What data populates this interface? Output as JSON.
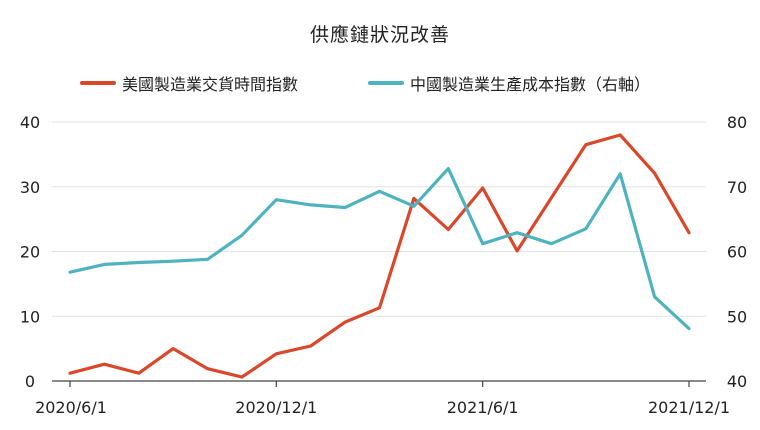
{
  "chart_data": {
    "type": "line",
    "title": "供應鏈狀況改善",
    "x_labels": [
      "2020/6/1",
      "2020/12/1",
      "2021/6/1",
      "2021/12/1"
    ],
    "x": [
      "2020/6",
      "2020/7",
      "2020/8",
      "2020/9",
      "2020/10",
      "2020/11",
      "2020/12",
      "2021/1",
      "2021/2",
      "2021/3",
      "2021/4",
      "2021/5",
      "2021/6",
      "2021/7",
      "2021/8",
      "2021/9",
      "2021/10",
      "2021/11",
      "2021/12"
    ],
    "ylim_left": [
      0,
      40
    ],
    "yticks_left": [
      0,
      10,
      20,
      30,
      40
    ],
    "ylim_right": [
      40,
      80
    ],
    "yticks_right": [
      40,
      50,
      60,
      70,
      80
    ],
    "grid": "horizontal",
    "legend_position": "top",
    "series": [
      {
        "name": "美國製造業交貨時間指數",
        "axis": "left",
        "color": "#d9482b",
        "values": [
          1.2,
          2.6,
          1.2,
          5.0,
          1.9,
          0.6,
          4.2,
          5.4,
          9.1,
          11.3,
          28.2,
          23.4,
          29.8,
          20.1,
          28.3,
          36.5,
          38.0,
          32.1,
          22.9
        ]
      },
      {
        "name": "中國製造業生產成本指數（右軸）",
        "axis": "right",
        "color": "#4fb3bf",
        "values": [
          56.8,
          58.0,
          58.3,
          58.5,
          58.8,
          62.5,
          68.0,
          67.2,
          66.8,
          69.3,
          67.0,
          72.8,
          61.2,
          62.9,
          61.2,
          63.5,
          72.0,
          53.0,
          48.1
        ]
      }
    ]
  }
}
